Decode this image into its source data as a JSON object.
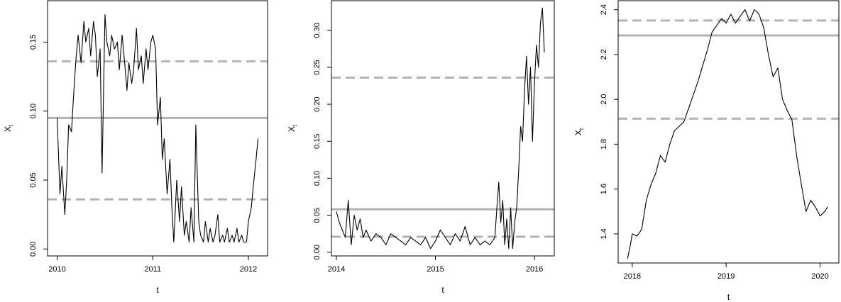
{
  "chart_data": [
    {
      "type": "line",
      "xlabel": "t",
      "ylabel": "X",
      "ylabel_subscript": "t",
      "xlim": [
        2009.9,
        2012.2
      ],
      "ylim": [
        -0.005,
        0.18
      ],
      "x_ticks": [
        2010,
        2011,
        2012
      ],
      "x_tick_labels": [
        "2010",
        "2011",
        "2012"
      ],
      "y_ticks": [
        0.0,
        0.05,
        0.1,
        0.15
      ],
      "y_tick_labels": [
        "0.00",
        "0.05",
        "0.10",
        "0.15"
      ],
      "hlines": [
        {
          "style": "solid",
          "value": 0.095,
          "color": "#b3b3b3"
        },
        {
          "style": "dashed",
          "value": 0.136,
          "color": "#b3b3b3"
        },
        {
          "style": "dashed",
          "value": 0.036,
          "color": "#b3b3b3"
        }
      ],
      "series": [
        {
          "color": "#000000",
          "x": [
            2010.0,
            2010.03,
            2010.05,
            2010.08,
            2010.1,
            2010.12,
            2010.15,
            2010.18,
            2010.2,
            2010.22,
            2010.25,
            2010.28,
            2010.3,
            2010.33,
            2010.35,
            2010.38,
            2010.4,
            2010.42,
            2010.45,
            2010.47,
            2010.5,
            2010.52,
            2010.55,
            2010.57,
            2010.6,
            2010.63,
            2010.65,
            2010.68,
            2010.7,
            2010.73,
            2010.75,
            2010.78,
            2010.8,
            2010.83,
            2010.85,
            2010.88,
            2010.9,
            2010.93,
            2010.95,
            2010.98,
            2011.0,
            2011.03,
            2011.05,
            2011.08,
            2011.1,
            2011.12,
            2011.15,
            2011.18,
            2011.2,
            2011.22,
            2011.25,
            2011.28,
            2011.3,
            2011.33,
            2011.35,
            2011.38,
            2011.4,
            2011.43,
            2011.45,
            2011.48,
            2011.5,
            2011.53,
            2011.55,
            2011.58,
            2011.6,
            2011.63,
            2011.65,
            2011.68,
            2011.7,
            2011.73,
            2011.75,
            2011.78,
            2011.8,
            2011.83,
            2011.85,
            2011.88,
            2011.9,
            2011.93,
            2011.95,
            2011.98,
            2012.0,
            2012.03,
            2012.05,
            2012.08,
            2012.1
          ],
          "y": [
            0.095,
            0.04,
            0.06,
            0.025,
            0.05,
            0.09,
            0.085,
            0.12,
            0.14,
            0.155,
            0.135,
            0.165,
            0.15,
            0.16,
            0.14,
            0.165,
            0.155,
            0.125,
            0.145,
            0.055,
            0.17,
            0.15,
            0.14,
            0.155,
            0.145,
            0.15,
            0.13,
            0.155,
            0.14,
            0.115,
            0.135,
            0.12,
            0.13,
            0.16,
            0.13,
            0.14,
            0.12,
            0.145,
            0.13,
            0.15,
            0.155,
            0.145,
            0.09,
            0.11,
            0.065,
            0.08,
            0.04,
            0.065,
            0.03,
            0.005,
            0.05,
            0.02,
            0.045,
            0.01,
            0.02,
            0.005,
            0.03,
            0.005,
            0.09,
            0.02,
            0.01,
            0.005,
            0.02,
            0.005,
            0.015,
            0.005,
            0.01,
            0.025,
            0.005,
            0.01,
            0.005,
            0.015,
            0.005,
            0.01,
            0.005,
            0.015,
            0.005,
            0.01,
            0.005,
            0.005,
            0.02,
            0.03,
            0.045,
            0.065,
            0.08
          ]
        }
      ]
    },
    {
      "type": "line",
      "xlabel": "t",
      "ylabel": "X",
      "ylabel_subscript": "t",
      "xlim": [
        2013.95,
        2016.2
      ],
      "ylim": [
        -0.005,
        0.34
      ],
      "x_ticks": [
        2014,
        2015,
        2016
      ],
      "x_tick_labels": [
        "2014",
        "2015",
        "2016"
      ],
      "y_ticks": [
        0.0,
        0.05,
        0.1,
        0.15,
        0.2,
        0.25,
        0.3
      ],
      "y_tick_labels": [
        "0.00",
        "0.05",
        "0.10",
        "0.15",
        "0.20",
        "0.25",
        "0.30"
      ],
      "hlines": [
        {
          "style": "solid",
          "value": 0.058,
          "color": "#b3b3b3"
        },
        {
          "style": "dashed",
          "value": 0.236,
          "color": "#b3b3b3"
        },
        {
          "style": "dashed",
          "value": 0.021,
          "color": "#b3b3b3"
        }
      ],
      "series": [
        {
          "color": "#000000",
          "x": [
            2014.0,
            2014.03,
            2014.06,
            2014.09,
            2014.12,
            2014.15,
            2014.18,
            2014.21,
            2014.24,
            2014.27,
            2014.3,
            2014.35,
            2014.4,
            2014.45,
            2014.5,
            2014.55,
            2014.6,
            2014.65,
            2014.7,
            2014.75,
            2014.8,
            2014.85,
            2014.9,
            2014.95,
            2015.0,
            2015.05,
            2015.1,
            2015.15,
            2015.2,
            2015.25,
            2015.3,
            2015.35,
            2015.4,
            2015.45,
            2015.5,
            2015.55,
            2015.6,
            2015.62,
            2015.64,
            2015.66,
            2015.68,
            2015.7,
            2015.72,
            2015.74,
            2015.76,
            2015.78,
            2015.8,
            2015.82,
            2015.84,
            2015.86,
            2015.88,
            2015.9,
            2015.92,
            2015.94,
            2015.96,
            2015.98,
            2016.0,
            2016.02,
            2016.04,
            2016.06,
            2016.08,
            2016.1
          ],
          "y": [
            0.055,
            0.04,
            0.03,
            0.02,
            0.07,
            0.01,
            0.05,
            0.03,
            0.045,
            0.02,
            0.03,
            0.015,
            0.025,
            0.02,
            0.01,
            0.025,
            0.02,
            0.015,
            0.01,
            0.02,
            0.015,
            0.01,
            0.02,
            0.005,
            0.015,
            0.03,
            0.02,
            0.01,
            0.025,
            0.015,
            0.035,
            0.01,
            0.02,
            0.01,
            0.015,
            0.01,
            0.02,
            0.06,
            0.095,
            0.04,
            0.07,
            0.01,
            0.045,
            0.005,
            0.06,
            0.005,
            0.04,
            0.06,
            0.11,
            0.17,
            0.15,
            0.22,
            0.265,
            0.2,
            0.25,
            0.15,
            0.23,
            0.28,
            0.25,
            0.31,
            0.33,
            0.27
          ]
        }
      ]
    },
    {
      "type": "line",
      "xlabel": "t",
      "ylabel": "X",
      "ylabel_subscript": "t",
      "xlim": [
        2017.85,
        2020.2
      ],
      "ylim": [
        1.27,
        2.44
      ],
      "x_ticks": [
        2018,
        2019,
        2020
      ],
      "x_tick_labels": [
        "2018",
        "2019",
        "2020"
      ],
      "y_ticks": [
        1.4,
        1.6,
        1.8,
        2.0,
        2.2,
        2.4
      ],
      "y_tick_labels": [
        "1.4",
        "1.6",
        "1.8",
        "2.0",
        "2.2",
        "2.4"
      ],
      "hlines": [
        {
          "style": "solid",
          "value": 2.285,
          "color": "#b3b3b3"
        },
        {
          "style": "dashed",
          "value": 2.352,
          "color": "#b3b3b3"
        },
        {
          "style": "dashed",
          "value": 1.914,
          "color": "#b3b3b3"
        }
      ],
      "series": [
        {
          "color": "#000000",
          "x": [
            2017.95,
            2017.98,
            2018.0,
            2018.05,
            2018.1,
            2018.15,
            2018.2,
            2018.25,
            2018.3,
            2018.35,
            2018.4,
            2018.45,
            2018.5,
            2018.55,
            2018.6,
            2018.65,
            2018.7,
            2018.75,
            2018.8,
            2018.85,
            2018.9,
            2018.95,
            2019.0,
            2019.05,
            2019.1,
            2019.15,
            2019.2,
            2019.25,
            2019.3,
            2019.35,
            2019.4,
            2019.45,
            2019.5,
            2019.55,
            2019.6,
            2019.65,
            2019.7,
            2019.75,
            2019.8,
            2019.85,
            2019.9,
            2019.95,
            2020.0,
            2020.05,
            2020.08
          ],
          "y": [
            1.29,
            1.35,
            1.4,
            1.39,
            1.42,
            1.55,
            1.62,
            1.67,
            1.75,
            1.72,
            1.8,
            1.86,
            1.88,
            1.9,
            1.96,
            2.02,
            2.08,
            2.15,
            2.22,
            2.3,
            2.33,
            2.36,
            2.34,
            2.38,
            2.34,
            2.37,
            2.4,
            2.35,
            2.4,
            2.38,
            2.32,
            2.2,
            2.1,
            2.14,
            2.0,
            1.95,
            1.91,
            1.75,
            1.62,
            1.5,
            1.55,
            1.52,
            1.48,
            1.5,
            1.52
          ]
        }
      ]
    }
  ]
}
